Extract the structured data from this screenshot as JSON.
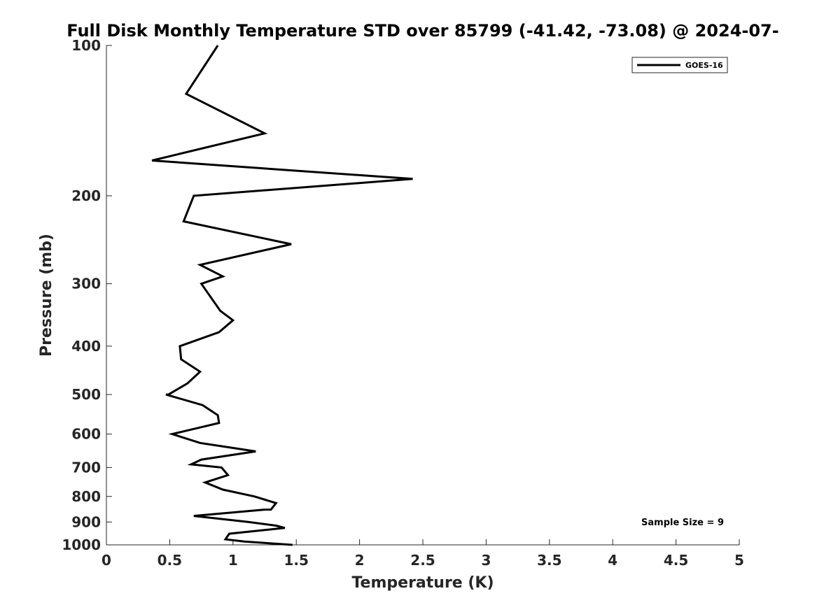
{
  "chart_data": {
    "type": "line",
    "title": "Full Disk Monthly Temperature STD over 85799 (-41.42, -73.08) @ 2024-07-",
    "xlabel": "Temperature (K)",
    "ylabel": "Pressure (mb)",
    "xlim": [
      0,
      5
    ],
    "ylim": [
      100,
      1000
    ],
    "y_scale": "log",
    "y_reversed": true,
    "grid": false,
    "legend_position": "top-right",
    "x_ticks": [
      0,
      0.5,
      1,
      1.5,
      2,
      2.5,
      3,
      3.5,
      4,
      4.5,
      5
    ],
    "x_tick_labels": [
      "0",
      "0.5",
      "1",
      "1.5",
      "2",
      "2.5",
      "3",
      "3.5",
      "4",
      "4.5",
      "5"
    ],
    "y_ticks": [
      100,
      200,
      300,
      400,
      500,
      600,
      700,
      800,
      900,
      1000
    ],
    "y_tick_labels": [
      "100",
      "200",
      "300",
      "400",
      "500",
      "600",
      "700",
      "800",
      "900",
      "1000"
    ],
    "series": [
      {
        "name": "GOES-16",
        "color": "#000000",
        "points": [
          [
            0.88,
            100
          ],
          [
            0.63,
            125
          ],
          [
            1.25,
            150
          ],
          [
            0.36,
            170
          ],
          [
            2.42,
            185
          ],
          [
            0.69,
            200
          ],
          [
            0.61,
            225
          ],
          [
            1.46,
            250
          ],
          [
            0.74,
            275
          ],
          [
            0.92,
            290
          ],
          [
            0.75,
            300
          ],
          [
            0.9,
            340
          ],
          [
            1.0,
            355
          ],
          [
            0.89,
            375
          ],
          [
            0.58,
            400
          ],
          [
            0.59,
            425
          ],
          [
            0.74,
            450
          ],
          [
            0.64,
            475
          ],
          [
            0.49,
            500
          ],
          [
            0.47,
            500
          ],
          [
            0.76,
            525
          ],
          [
            0.88,
            550
          ],
          [
            0.89,
            570
          ],
          [
            0.64,
            590
          ],
          [
            0.52,
            600
          ],
          [
            0.74,
            625
          ],
          [
            1.18,
            650
          ],
          [
            0.75,
            675
          ],
          [
            0.67,
            690
          ],
          [
            0.91,
            700
          ],
          [
            0.96,
            725
          ],
          [
            0.78,
            750
          ],
          [
            0.92,
            775
          ],
          [
            1.17,
            800
          ],
          [
            1.34,
            825
          ],
          [
            1.3,
            850
          ],
          [
            1.25,
            850
          ],
          [
            0.69,
            875
          ],
          [
            1.12,
            900
          ],
          [
            1.34,
            915
          ],
          [
            1.41,
            925
          ],
          [
            0.97,
            950
          ],
          [
            0.94,
            975
          ],
          [
            1.09,
            985
          ],
          [
            1.47,
            1000
          ]
        ]
      }
    ],
    "annotations": [
      {
        "text": "Sample Size = 9",
        "x": 4.45,
        "y": 925
      }
    ]
  }
}
